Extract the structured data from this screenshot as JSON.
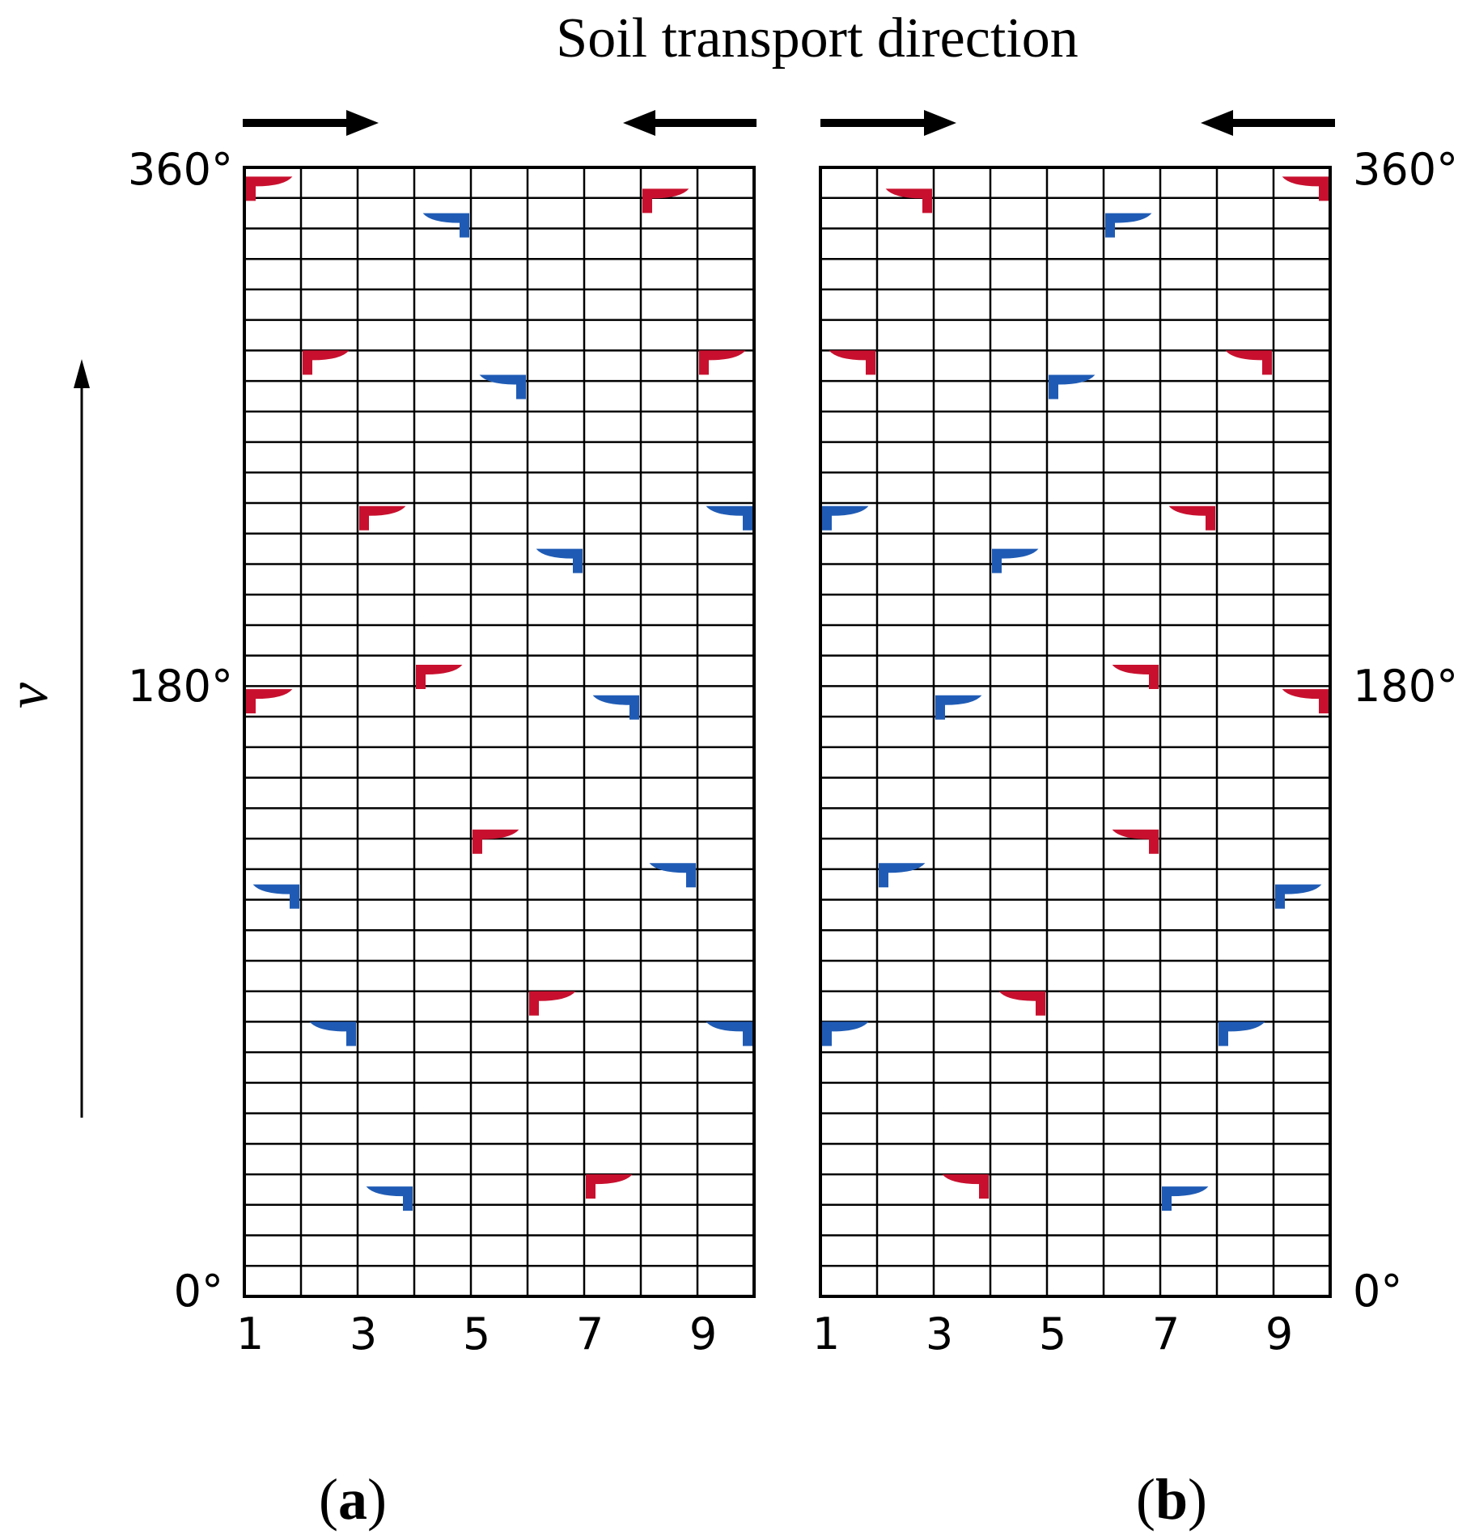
{
  "title": "Soil transport direction",
  "axis_variable": "v",
  "colors": {
    "red_blade": "#c8102e",
    "blue_blade": "#1f5bb5",
    "grid": "#000000"
  },
  "angle_labels": {
    "top": "360°",
    "middle": "180°",
    "bottom": "0°"
  },
  "x_tick_labels": [
    "1",
    "3",
    "5",
    "7",
    "9"
  ],
  "grid": {
    "columns": 9,
    "rows": 37
  },
  "panels": [
    {
      "id": "a",
      "label_open": "(",
      "label_letter": "a",
      "label_close": ")",
      "arrows": [
        "right",
        "left"
      ],
      "blades": [
        {
          "col": 1,
          "row": 0.3,
          "color": "red"
        },
        {
          "col": 8,
          "row": 0.7,
          "color": "red"
        },
        {
          "col": 4,
          "row": 1.5,
          "color": "blue"
        },
        {
          "col": 2,
          "row": 6.0,
          "color": "red"
        },
        {
          "col": 9,
          "row": 6.0,
          "color": "red"
        },
        {
          "col": 5,
          "row": 6.8,
          "color": "blue"
        },
        {
          "col": 3,
          "row": 11.1,
          "color": "red"
        },
        {
          "col": 9,
          "row": 11.1,
          "color": "blue"
        },
        {
          "col": 6,
          "row": 12.5,
          "color": "blue"
        },
        {
          "col": 4,
          "row": 16.3,
          "color": "red"
        },
        {
          "col": 1,
          "row": 17.1,
          "color": "red"
        },
        {
          "col": 7,
          "row": 17.3,
          "color": "blue"
        },
        {
          "col": 5,
          "row": 21.7,
          "color": "red"
        },
        {
          "col": 8,
          "row": 22.8,
          "color": "blue"
        },
        {
          "col": 1,
          "row": 23.5,
          "color": "blue"
        },
        {
          "col": 6,
          "row": 27.0,
          "color": "red"
        },
        {
          "col": 2,
          "row": 28.0,
          "color": "blue"
        },
        {
          "col": 9,
          "row": 28.0,
          "color": "blue"
        },
        {
          "col": 7,
          "row": 33.0,
          "color": "red"
        },
        {
          "col": 3,
          "row": 33.4,
          "color": "blue"
        }
      ]
    },
    {
      "id": "b",
      "label_open": "(",
      "label_letter": "b",
      "label_close": ")",
      "arrows": [
        "right",
        "left"
      ],
      "blades": [
        {
          "col": 2,
          "row": 0.7,
          "color": "red"
        },
        {
          "col": 9,
          "row": 0.3,
          "color": "red"
        },
        {
          "col": 6,
          "row": 1.5,
          "color": "blue"
        },
        {
          "col": 1,
          "row": 6.0,
          "color": "red"
        },
        {
          "col": 8,
          "row": 6.0,
          "color": "red"
        },
        {
          "col": 5,
          "row": 6.8,
          "color": "blue"
        },
        {
          "col": 1,
          "row": 11.1,
          "color": "blue"
        },
        {
          "col": 7,
          "row": 11.1,
          "color": "red"
        },
        {
          "col": 4,
          "row": 12.5,
          "color": "blue"
        },
        {
          "col": 6,
          "row": 16.3,
          "color": "red"
        },
        {
          "col": 9,
          "row": 17.1,
          "color": "red"
        },
        {
          "col": 3,
          "row": 17.3,
          "color": "blue"
        },
        {
          "col": 6,
          "row": 21.7,
          "color": "red"
        },
        {
          "col": 2,
          "row": 22.8,
          "color": "blue"
        },
        {
          "col": 9,
          "row": 23.5,
          "color": "blue"
        },
        {
          "col": 4,
          "row": 27.0,
          "color": "red"
        },
        {
          "col": 1,
          "row": 28.0,
          "color": "blue"
        },
        {
          "col": 8,
          "row": 28.0,
          "color": "blue"
        },
        {
          "col": 3,
          "row": 33.0,
          "color": "red"
        },
        {
          "col": 7,
          "row": 33.4,
          "color": "blue"
        }
      ]
    }
  ]
}
